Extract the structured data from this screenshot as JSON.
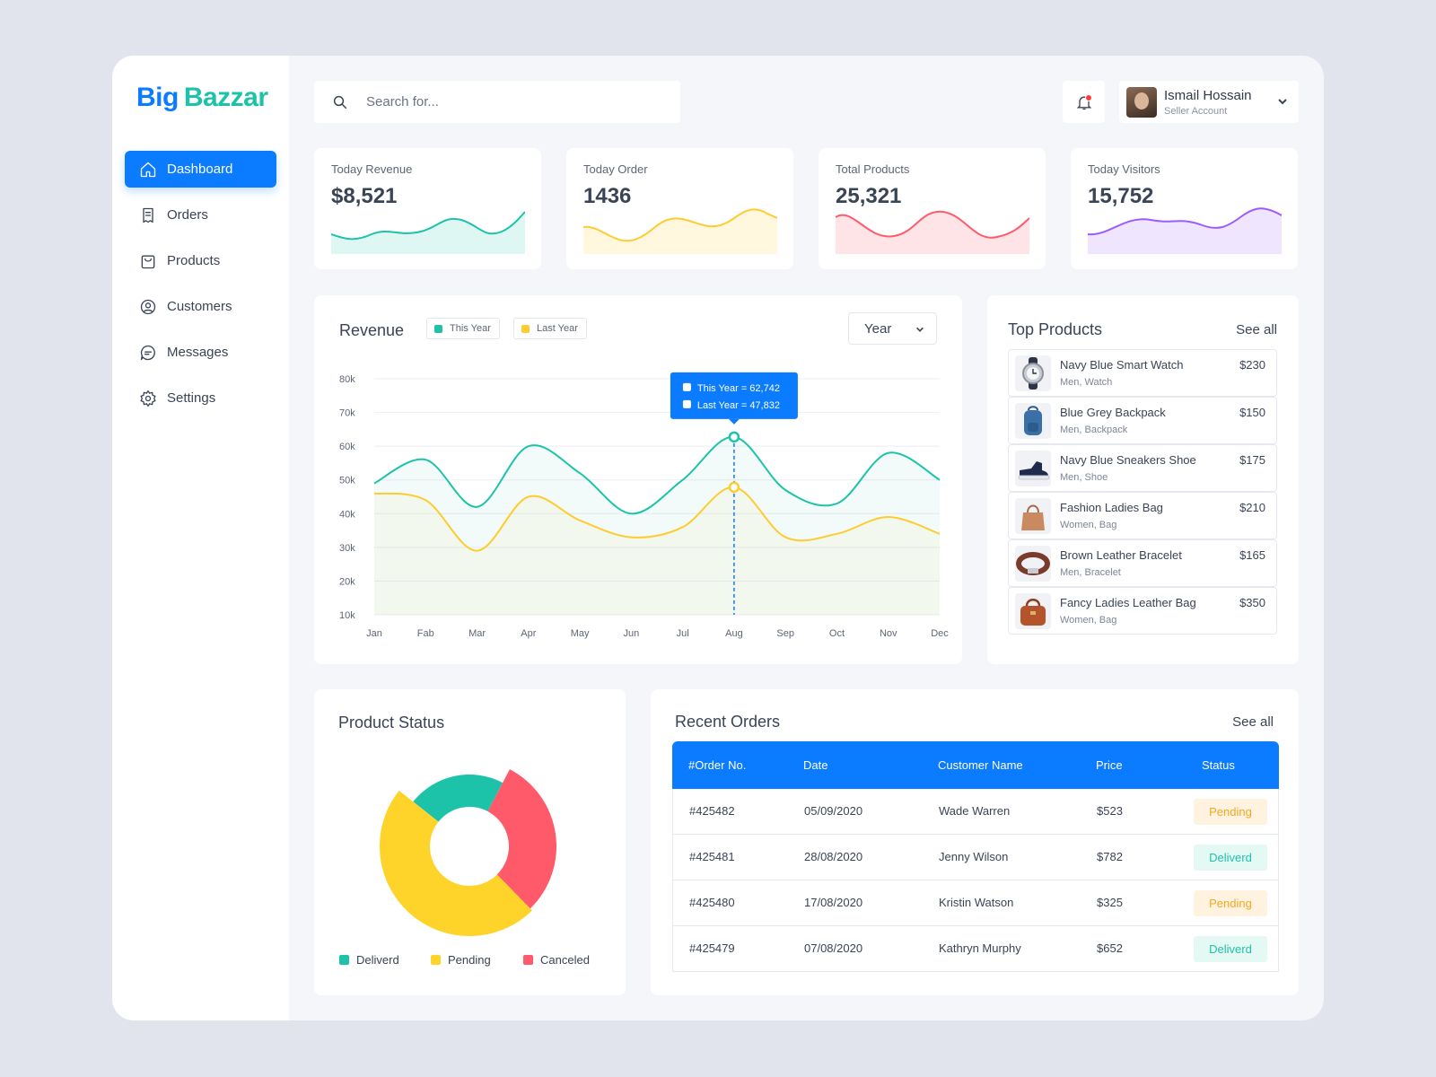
{
  "brand": {
    "word1": "Big",
    "word2": "Bazzar"
  },
  "nav": [
    {
      "label": "Dashboard",
      "icon": "home-icon",
      "active": true
    },
    {
      "label": "Orders",
      "icon": "receipt-icon",
      "active": false
    },
    {
      "label": "Products",
      "icon": "bag-icon",
      "active": false
    },
    {
      "label": "Customers",
      "icon": "user-circle-icon",
      "active": false
    },
    {
      "label": "Messages",
      "icon": "chat-icon",
      "active": false
    },
    {
      "label": "Settings",
      "icon": "gear-icon",
      "active": false
    }
  ],
  "search": {
    "placeholder": "Search for..."
  },
  "user": {
    "name": "Ismail Hossain",
    "role": "Seller Account"
  },
  "stats": [
    {
      "label": "Today Revenue",
      "value": "$8,521",
      "color": "#1dc3a9"
    },
    {
      "label": "Today Order",
      "value": "1436",
      "color": "#ffcc2f"
    },
    {
      "label": "Total Products",
      "value": "25,321",
      "color": "#ff5a6a"
    },
    {
      "label": "Today Visitors",
      "value": "15,752",
      "color": "#9b5cff"
    }
  ],
  "revenue": {
    "title": "Revenue",
    "legend_this": "This Year",
    "legend_last": "Last Year",
    "period": "Year",
    "tooltip_this": "This Year = 62,742",
    "tooltip_last": "Last Year = 47,832"
  },
  "chart_data": {
    "type": "line",
    "x": [
      "Jan",
      "Fab",
      "Mar",
      "Apr",
      "May",
      "Jun",
      "Jul",
      "Aug",
      "Sep",
      "Oct",
      "Nov",
      "Dec"
    ],
    "y_ticks": [
      "80k",
      "70k",
      "60k",
      "50k",
      "40k",
      "30k",
      "20k",
      "10k"
    ],
    "ylim": [
      10000,
      80000
    ],
    "series": [
      {
        "name": "This Year",
        "color": "#1dc3a9",
        "values": [
          49000,
          56000,
          42000,
          60000,
          52000,
          40000,
          50000,
          62742,
          47000,
          43000,
          58000,
          50000
        ]
      },
      {
        "name": "Last Year",
        "color": "#ffcc2f",
        "values": [
          46000,
          44000,
          29000,
          45000,
          38000,
          33000,
          36000,
          47832,
          33000,
          34000,
          39000,
          34000
        ]
      }
    ],
    "highlight_index": 7,
    "grid": true
  },
  "top_products": {
    "title": "Top Products",
    "see_all": "See all",
    "items": [
      {
        "name": "Navy Blue Smart Watch",
        "category": "Men, Watch",
        "price": "$230",
        "icon": "watch-icon"
      },
      {
        "name": "Blue Grey Backpack",
        "category": "Men, Backpack",
        "price": "$150",
        "icon": "backpack-icon"
      },
      {
        "name": "Navy Blue Sneakers Shoe",
        "category": "Men, Shoe",
        "price": "$175",
        "icon": "sneaker-icon"
      },
      {
        "name": "Fashion Ladies Bag",
        "category": "Women, Bag",
        "price": "$210",
        "icon": "handbag-icon"
      },
      {
        "name": "Brown Leather Bracelet",
        "category": "Men, Bracelet",
        "price": "$165",
        "icon": "bracelet-icon"
      },
      {
        "name": "Fancy Ladies Leather Bag",
        "category": "Women, Bag",
        "price": "$350",
        "icon": "leather-bag-icon"
      }
    ]
  },
  "product_status": {
    "title": "Product Status",
    "legend": [
      {
        "label": "Deliverd",
        "color": "#1dc3a9"
      },
      {
        "label": "Pending",
        "color": "#ffd42a"
      },
      {
        "label": "Canceled",
        "color": "#ff5a6a"
      }
    ],
    "slices": [
      {
        "label": "Deliverd",
        "color": "#1dc3a9",
        "fraction": 0.22
      },
      {
        "label": "Canceled",
        "color": "#ff5a6a",
        "fraction": 0.3
      },
      {
        "label": "Pending",
        "color": "#ffd42a",
        "fraction": 0.48
      }
    ]
  },
  "recent_orders": {
    "title": "Recent Orders",
    "see_all": "See all",
    "columns": [
      "#Order No.",
      "Date",
      "Customer Name",
      "Price",
      "Status"
    ],
    "rows": [
      {
        "order": "#425482",
        "date": "05/09/2020",
        "customer": "Wade Warren",
        "price": "$523",
        "status": "Pending"
      },
      {
        "order": "#425481",
        "date": "28/08/2020",
        "customer": "Jenny Wilson",
        "price": "$782",
        "status": "Deliverd"
      },
      {
        "order": "#425480",
        "date": "17/08/2020",
        "customer": "Kristin Watson",
        "price": "$325",
        "status": "Pending"
      },
      {
        "order": "#425479",
        "date": "07/08/2020",
        "customer": "Kathryn Murphy",
        "price": "$652",
        "status": "Deliverd"
      }
    ]
  }
}
